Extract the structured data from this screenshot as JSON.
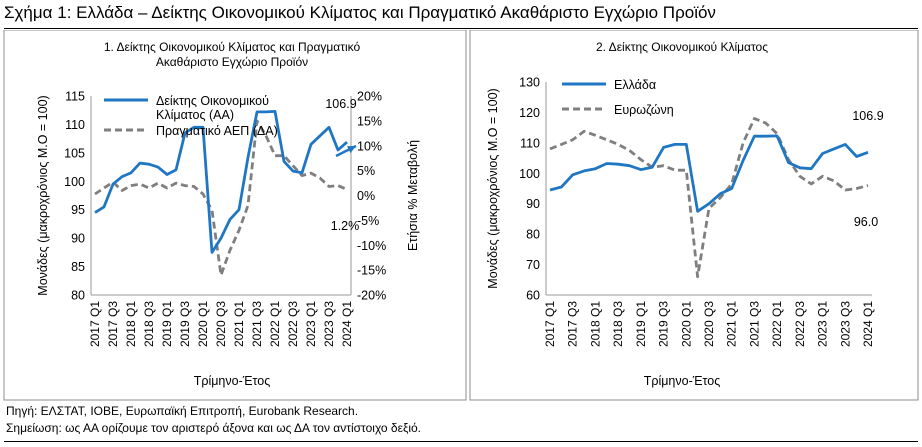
{
  "figure": {
    "title": "Σχήμα 1: Ελλάδα – Δείκτης Οικονομικού Κλίματος και Πραγματικό Ακαθάριστο Εγχώριο Προϊόν",
    "source": "Πηγή: ΕΛΣΤΑΤ, ΙΟΒΕ, Ευρωπαϊκή Επιτροπή, Eurobank Research.",
    "note": "Σημείωση: ως ΑΑ ορίζουμε τον αριστερό άξονα και ως ΔΑ τον αντίστοιχο δεξιό."
  },
  "chart_data": [
    {
      "type": "line",
      "title": [
        "1. Δείκτης Οικονομικού Κλίματος και Πραγματικό",
        "Ακαθάριστο Εγχώριο Προϊόν"
      ],
      "xlabel": "Τρίμηνο-Έτος",
      "ylabel": "Μονάδες (μακροχρόνιος Μ.Ο = 100)",
      "ylabel_right": "Ετήσια % Μεταβολή",
      "ylim": [
        80,
        115
      ],
      "y_ticks": [
        "80",
        "85",
        "90",
        "95",
        "100",
        "105",
        "110",
        "115"
      ],
      "ylim_right": [
        -20,
        20
      ],
      "y_ticks_right": [
        "-20%",
        "-15%",
        "-10%",
        "-5%",
        "0%",
        "5%",
        "10%",
        "15%",
        "20%"
      ],
      "x_tick_labels": [
        "2017 Q1",
        "2017 Q3",
        "2018 Q1",
        "2018 Q3",
        "2019 Q1",
        "2019 Q3",
        "2020 Q1",
        "2020 Q3",
        "2021 Q1",
        "2021 Q3",
        "2022 Q1",
        "2022 Q3",
        "2023 Q1",
        "2023 Q3",
        "2024 Q1"
      ],
      "series": [
        {
          "name": "Δείκτης Οικονομικού Κλίματος (ΑΑ)",
          "axis": "left",
          "color": "#1f77c4",
          "dash": "solid",
          "values": [
            94.5,
            95.5,
            99.5,
            100.8,
            101.5,
            103.2,
            103.0,
            102.5,
            101.2,
            102.0,
            108.5,
            109.5,
            109.5,
            87.5,
            90.0,
            93.3,
            95.0,
            104.2,
            112.2,
            112.2,
            112.3,
            103.5,
            101.8,
            101.5,
            106.5,
            108.0,
            109.5,
            105.5,
            106.9
          ]
        },
        {
          "name": "Πραγματικό ΑΕΠ (ΔΑ)",
          "axis": "right",
          "color": "#7f7f7f",
          "dash": "dash",
          "values": [
            0.3,
            1.5,
            2.7,
            1.0,
            2.0,
            2.3,
            1.5,
            2.5,
            1.5,
            2.5,
            2.0,
            1.8,
            0.3,
            -3.0,
            -16.0,
            -11.0,
            -7.0,
            -2.0,
            15.0,
            12.0,
            8.0,
            8.0,
            6.0,
            4.0,
            4.5,
            3.5,
            1.8,
            2.0,
            1.2
          ]
        }
      ],
      "annotations": [
        "106.9",
        "1.2%"
      ]
    },
    {
      "type": "line",
      "title": [
        "2. Δείκτης Οικονομικού Κλίματος"
      ],
      "xlabel": "Τρίμηνο-Έτος",
      "ylabel": "Μονάδες (μακροχρόνιος Μ.Ο = 100)",
      "ylim": [
        60,
        130
      ],
      "y_ticks": [
        "60",
        "70",
        "80",
        "90",
        "100",
        "110",
        "120",
        "130"
      ],
      "x_tick_labels": [
        "2017 Q1",
        "2017 Q3",
        "2018 Q1",
        "2018 Q3",
        "2019 Q1",
        "2019 Q3",
        "2020 Q1",
        "2020 Q3",
        "2021 Q1",
        "2021 Q3",
        "2022 Q1",
        "2022 Q3",
        "2023 Q1",
        "2023 Q3",
        "2024 Q1"
      ],
      "series": [
        {
          "name": "Ελλάδα",
          "color": "#1f77c4",
          "dash": "solid",
          "values": [
            94.5,
            95.5,
            99.5,
            100.8,
            101.5,
            103.2,
            103.0,
            102.5,
            101.2,
            102.0,
            108.5,
            109.5,
            109.5,
            87.5,
            90.0,
            93.3,
            95.0,
            104.2,
            112.2,
            112.2,
            112.3,
            103.5,
            101.8,
            101.5,
            106.5,
            108.0,
            109.5,
            105.5,
            106.9
          ]
        },
        {
          "name": "Ευρωζώνη",
          "color": "#7f7f7f",
          "dash": "dash",
          "values": [
            108.0,
            109.5,
            111.0,
            113.8,
            112.5,
            111.0,
            109.5,
            107.5,
            104.5,
            102.0,
            102.5,
            101.0,
            101.0,
            66.0,
            88.5,
            92.0,
            96.5,
            110.0,
            118.0,
            116.5,
            113.0,
            104.5,
            99.0,
            96.5,
            99.0,
            97.5,
            94.5,
            95.0,
            96.0
          ]
        }
      ],
      "annotations": [
        "106.9",
        "96.0"
      ]
    }
  ]
}
